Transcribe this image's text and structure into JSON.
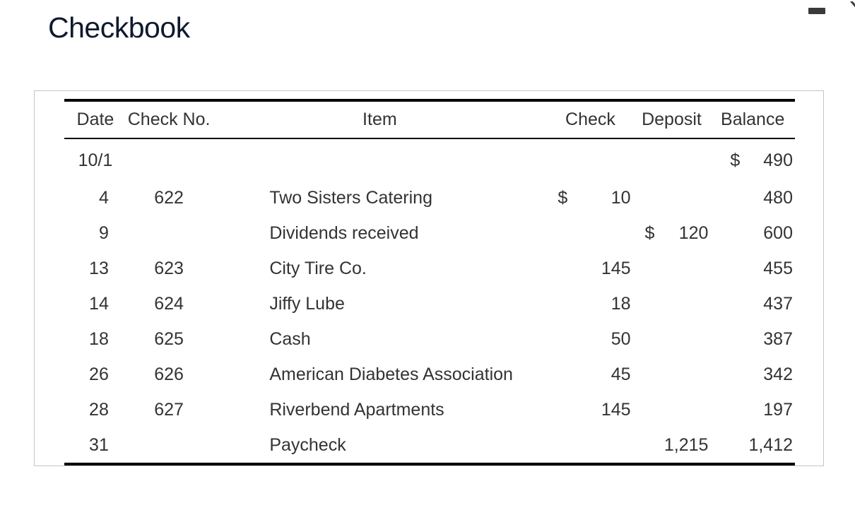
{
  "title": "Checkbook",
  "table": {
    "headers": {
      "date": "Date",
      "check_no": "Check No.",
      "item": "Item",
      "check": "Check",
      "deposit": "Deposit",
      "balance": "Balance"
    },
    "rows": [
      {
        "date": "10/1",
        "check_no": "",
        "item": "",
        "check_sign": "",
        "check": "",
        "deposit_sign": "",
        "deposit": "",
        "balance_sign": "$",
        "balance": "490"
      },
      {
        "date": "4",
        "check_no": "622",
        "item": "Two Sisters Catering",
        "check_sign": "$",
        "check": "10",
        "deposit_sign": "",
        "deposit": "",
        "balance_sign": "",
        "balance": "480"
      },
      {
        "date": "9",
        "check_no": "",
        "item": "Dividends received",
        "check_sign": "",
        "check": "",
        "deposit_sign": "$",
        "deposit": "120",
        "balance_sign": "",
        "balance": "600"
      },
      {
        "date": "13",
        "check_no": "623",
        "item": "City Tire Co.",
        "check_sign": "",
        "check": "145",
        "deposit_sign": "",
        "deposit": "",
        "balance_sign": "",
        "balance": "455"
      },
      {
        "date": "14",
        "check_no": "624",
        "item": "Jiffy Lube",
        "check_sign": "",
        "check": "18",
        "deposit_sign": "",
        "deposit": "",
        "balance_sign": "",
        "balance": "437"
      },
      {
        "date": "18",
        "check_no": "625",
        "item": "Cash",
        "check_sign": "",
        "check": "50",
        "deposit_sign": "",
        "deposit": "",
        "balance_sign": "",
        "balance": "387"
      },
      {
        "date": "26",
        "check_no": "626",
        "item": "American Diabetes Association",
        "check_sign": "",
        "check": "45",
        "deposit_sign": "",
        "deposit": "",
        "balance_sign": "",
        "balance": "342"
      },
      {
        "date": "28",
        "check_no": "627",
        "item": "Riverbend Apartments",
        "check_sign": "",
        "check": "145",
        "deposit_sign": "",
        "deposit": "",
        "balance_sign": "",
        "balance": "197"
      },
      {
        "date": "31",
        "check_no": "",
        "item": "Paycheck",
        "check_sign": "",
        "check": "",
        "deposit_sign": "",
        "deposit": "1,215",
        "balance_sign": "",
        "balance": "1,412"
      }
    ]
  },
  "window_controls": {
    "icons": [
      "minimize-icon",
      "close-icon"
    ]
  }
}
